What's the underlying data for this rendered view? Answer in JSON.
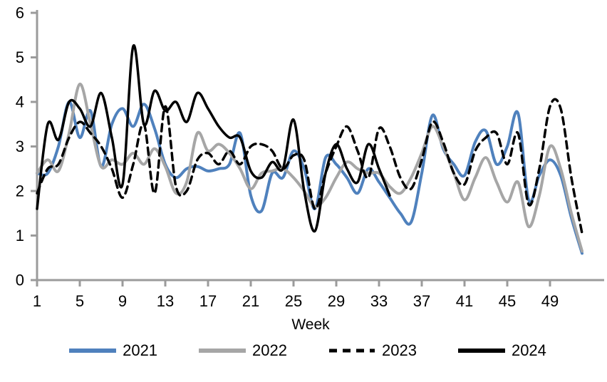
{
  "chart_data": {
    "type": "line",
    "title": "",
    "xlabel": "Week",
    "ylabel": "",
    "xlim": [
      1,
      53
    ],
    "ylim": [
      0,
      6
    ],
    "x_ticks": [
      1,
      5,
      9,
      13,
      17,
      21,
      25,
      29,
      33,
      37,
      41,
      45,
      49
    ],
    "y_ticks": [
      0,
      1,
      2,
      3,
      4,
      5,
      6
    ],
    "grid": false,
    "legend_position": "bottom",
    "axis_color": "#9b9b9b",
    "series": [
      {
        "name": "2021",
        "color": "#4f81bd",
        "style": "solid",
        "x_start": 1,
        "values": [
          2.4,
          2.4,
          3.0,
          4.0,
          3.2,
          3.8,
          2.55,
          3.5,
          3.85,
          3.45,
          3.95,
          3.4,
          2.6,
          2.3,
          2.5,
          2.55,
          2.45,
          2.5,
          2.6,
          3.3,
          1.9,
          1.55,
          2.4,
          2.3,
          2.9,
          2.5,
          1.6,
          2.75,
          2.6,
          2.3,
          1.95,
          2.5,
          2.2,
          1.85,
          1.5,
          1.3,
          2.4,
          3.7,
          2.95,
          2.6,
          2.35,
          3.1,
          3.35,
          2.6,
          3.0,
          3.75,
          1.8,
          2.35,
          2.7,
          2.35,
          1.4,
          0.6
        ]
      },
      {
        "name": "2022",
        "color": "#a6a6a6",
        "style": "solid",
        "x_start": 1,
        "values": [
          2.4,
          2.7,
          2.45,
          3.3,
          4.4,
          3.5,
          2.55,
          2.7,
          2.6,
          2.85,
          2.6,
          2.95,
          2.55,
          1.95,
          2.2,
          3.3,
          2.9,
          3.05,
          2.85,
          2.5,
          2.05,
          2.4,
          2.45,
          2.5,
          2.3,
          2.0,
          1.65,
          1.85,
          2.3,
          2.65,
          2.5,
          2.4,
          2.4,
          2.1,
          1.95,
          2.3,
          2.85,
          3.45,
          3.0,
          2.4,
          1.8,
          2.3,
          2.75,
          2.2,
          1.75,
          2.2,
          1.2,
          1.9,
          3.0,
          2.5,
          1.5,
          0.65
        ]
      },
      {
        "name": "2023",
        "color": "#000000",
        "style": "dashed",
        "x_start": 1,
        "values": [
          1.95,
          2.5,
          2.6,
          3.2,
          3.55,
          3.3,
          3.0,
          2.5,
          1.85,
          2.6,
          3.5,
          1.95,
          3.9,
          2.1,
          2.0,
          2.7,
          2.85,
          2.6,
          2.9,
          2.6,
          3.0,
          3.05,
          2.9,
          2.5,
          2.8,
          2.7,
          1.6,
          2.4,
          3.0,
          3.45,
          2.9,
          2.3,
          3.4,
          3.0,
          2.3,
          2.05,
          2.7,
          3.55,
          3.1,
          2.4,
          2.15,
          2.9,
          3.2,
          3.3,
          2.6,
          3.3,
          1.7,
          2.5,
          3.9,
          3.85,
          2.3,
          1.05
        ]
      },
      {
        "name": "2024",
        "color": "#000000",
        "style": "solid",
        "x_start": 1,
        "values": [
          1.6,
          3.5,
          3.15,
          4.0,
          3.85,
          3.45,
          4.2,
          3.2,
          2.15,
          5.25,
          3.5,
          4.25,
          3.8,
          4.0,
          3.55,
          4.2,
          3.85,
          3.45,
          3.2,
          3.2,
          2.45,
          2.3,
          2.65,
          2.5,
          3.6,
          2.0,
          1.1,
          2.4,
          3.05,
          2.5,
          2.2,
          3.05,
          2.5,
          1.9
        ]
      }
    ]
  }
}
